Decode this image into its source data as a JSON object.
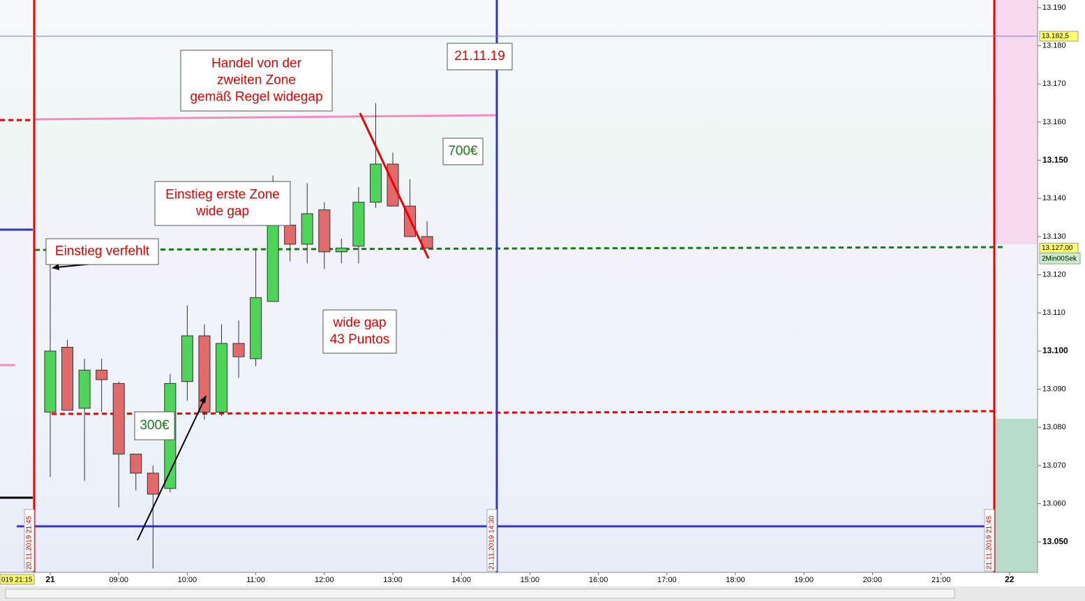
{
  "chart_data": {
    "type": "candlestick",
    "x": [
      "08:00",
      "08:15",
      "08:30",
      "08:45",
      "09:00",
      "09:15",
      "09:30",
      "09:45",
      "10:00",
      "10:15",
      "10:30",
      "10:45",
      "11:00",
      "11:15",
      "11:30",
      "11:45",
      "12:00",
      "12:15",
      "12:30",
      "12:45",
      "13:00",
      "13:15",
      "13:30"
    ],
    "open": [
      13.084,
      13.101,
      13.085,
      13.095,
      13.0915,
      13.073,
      13.068,
      13.064,
      13.092,
      13.104,
      13.084,
      13.102,
      13.098,
      13.113,
      13.133,
      13.128,
      13.137,
      13.126,
      13.1275,
      13.139,
      13.149,
      13.138,
      13.13
    ],
    "high": [
      13.123,
      13.103,
      13.098,
      13.098,
      13.092,
      13.073,
      13.07,
      13.094,
      13.112,
      13.107,
      13.107,
      13.108,
      13.127,
      13.146,
      13.1405,
      13.144,
      13.139,
      13.1295,
      13.143,
      13.165,
      13.152,
      13.145,
      13.134
    ],
    "low": [
      13.067,
      13.085,
      13.066,
      13.084,
      13.059,
      13.0635,
      13.043,
      13.063,
      13.087,
      13.082,
      13.083,
      13.093,
      13.096,
      13.113,
      13.1235,
      13.123,
      13.1215,
      13.123,
      13.123,
      13.1375,
      13.138,
      13.13,
      13.127
    ],
    "close": [
      13.1,
      13.0845,
      13.095,
      13.0925,
      13.073,
      13.068,
      13.0625,
      13.0915,
      13.104,
      13.084,
      13.102,
      13.0985,
      13.114,
      13.133,
      13.128,
      13.136,
      13.126,
      13.127,
      13.139,
      13.149,
      13.138,
      13.13,
      13.127
    ],
    "up_color": "#4fd45a",
    "down_color": "#e36a6a",
    "ylim": [
      13.042,
      13.192
    ],
    "yticks": [
      {
        "value": 13.05,
        "label": "13.050"
      },
      {
        "value": 13.06,
        "label": "13.060"
      },
      {
        "value": 13.07,
        "label": "13.070"
      },
      {
        "value": 13.08,
        "label": "13.080"
      },
      {
        "value": 13.09,
        "label": "13.090"
      },
      {
        "value": 13.1,
        "label": "13.100"
      },
      {
        "value": 13.11,
        "label": "13.110"
      },
      {
        "value": 13.12,
        "label": "13.120"
      },
      {
        "value": 13.13,
        "label": "13.130"
      },
      {
        "value": 13.14,
        "label": "13.140"
      },
      {
        "value": 13.15,
        "label": "13.150"
      },
      {
        "value": 13.16,
        "label": "13.160"
      },
      {
        "value": 13.17,
        "label": "13.170"
      },
      {
        "value": 13.18,
        "label": "13.180"
      },
      {
        "value": 13.19,
        "label": "13.190"
      }
    ],
    "xtick_labels": [
      "21",
      "09:00",
      "10:00",
      "11:00",
      "12:00",
      "13:00",
      "14:00",
      "15:00",
      "16:00",
      "17:00",
      "18:00",
      "19:00",
      "20:00",
      "21:00",
      "22"
    ],
    "price_labels": [
      {
        "value": 13.1825,
        "label": "13.182,5"
      },
      {
        "value": 13.127,
        "label": "13.127,00"
      }
    ],
    "interval_label": "2Min00Sek",
    "date_markers": [
      "20.11.2019 21:45",
      "21.11.2019 14:30",
      "21.11.2019 21:45"
    ],
    "cursor_label": "019 21:15",
    "annotations": [
      {
        "lines": [
          "21.11.19"
        ],
        "color": "#e00000"
      },
      {
        "lines": [
          "Handel von der",
          "zweiten Zone",
          "gemäß Regel widegap"
        ],
        "color": "#e00000"
      },
      {
        "lines": [
          "700€"
        ],
        "color": "#1a7a1a"
      },
      {
        "lines": [
          "Einstieg erste Zone",
          "wide gap"
        ],
        "color": "#e00000"
      },
      {
        "lines": [
          "Einstieg verfehlt"
        ],
        "color": "#e00000"
      },
      {
        "lines": [
          "wide gap",
          "43 Puntos"
        ],
        "color": "#e00000"
      },
      {
        "lines": [
          "300€"
        ],
        "color": "#1a7a1a"
      }
    ]
  }
}
